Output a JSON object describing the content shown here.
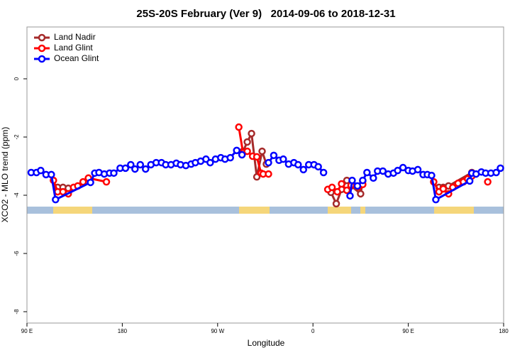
{
  "chart_data": {
    "type": "line",
    "title": "25S-20S February (Ver 9)   2014-09-06 to 2018-12-31",
    "x_label": "Longitude",
    "y_label": "XCO2 - MLO trend (ppm)",
    "xlim": [
      90,
      540
    ],
    "ylim": [
      -8.39,
      1.78
    ],
    "xticks": [
      {
        "value": 90,
        "label": "90 E"
      },
      180,
      {
        "value": 270,
        "label": "90 W"
      },
      {
        "value": 360,
        "label": "0"
      },
      {
        "value": 450,
        "label": "90 E"
      },
      {
        "value": 540,
        "label": "180"
      }
    ],
    "yticks": [
      -8,
      -6,
      -4,
      -2,
      0
    ],
    "legend": "top-left",
    "series": [
      {
        "name": "Land Nadir",
        "color": "#a52a2a",
        "x": [
          119,
          124,
          129,
          null,
          294,
          298,
          302,
          307,
          312,
          316,
          null,
          377,
          382,
          387,
          392,
          396,
          405,
          407,
          null,
          479,
          483,
          488,
          510
        ],
        "values": [
          -3.73,
          -3.73,
          -3.76,
          null,
          -2.49,
          -2.17,
          -1.88,
          -3.37,
          -2.49,
          -2.93,
          null,
          -3.9,
          -4.29,
          -3.8,
          -3.49,
          -3.68,
          -3.95,
          -3.51,
          null,
          -3.73,
          -3.73,
          -3.68,
          -3.22
        ]
      },
      {
        "name": "Land Glint",
        "color": "#ff0000",
        "x": [
          115,
          119,
          124,
          129,
          134,
          138,
          143,
          148,
          165,
          null,
          290,
          294,
          298,
          303,
          307,
          311,
          313,
          318,
          null,
          374,
          378,
          383,
          387,
          392,
          396,
          403,
          407,
          null,
          474,
          479,
          483,
          488,
          492,
          497,
          502,
          506,
          510,
          null,
          525
        ],
        "values": [
          -3.49,
          -3.88,
          -3.88,
          -3.95,
          -3.73,
          -3.68,
          -3.54,
          -3.41,
          -3.54,
          null,
          -1.66,
          -2.54,
          -2.49,
          -2.66,
          -2.68,
          -3.24,
          -3.27,
          -3.27,
          null,
          -3.8,
          -3.73,
          -3.88,
          -3.61,
          -3.83,
          -3.66,
          -3.71,
          -3.63,
          null,
          -3.54,
          -3.88,
          -3.78,
          -3.95,
          -3.73,
          -3.59,
          -3.54,
          -3.44,
          -3.34,
          null,
          -3.54
        ]
      },
      {
        "name": "Ocean Glint",
        "color": "#0000ff",
        "x": [
          94,
          99,
          103,
          108,
          113,
          117,
          150,
          154,
          158,
          163,
          168,
          172,
          178,
          183,
          188,
          192,
          197,
          202,
          207,
          212,
          217,
          221,
          226,
          231,
          235,
          240,
          245,
          249,
          254,
          259,
          263,
          268,
          273,
          277,
          282,
          288,
          293,
          null,
          318,
          323,
          328,
          332,
          337,
          342,
          346,
          351,
          356,
          361,
          365,
          370,
          null,
          395,
          397,
          402,
          407,
          411,
          417,
          421,
          426,
          431,
          436,
          440,
          445,
          450,
          454,
          459,
          464,
          468,
          472,
          476,
          508,
          510,
          514,
          519,
          523,
          528,
          533,
          537
        ],
        "values": [
          -3.22,
          -3.22,
          -3.15,
          -3.29,
          -3.29,
          -4.15,
          -3.56,
          -3.24,
          -3.22,
          -3.27,
          -3.24,
          -3.24,
          -3.07,
          -3.07,
          -2.95,
          -3.1,
          -2.95,
          -3.1,
          -2.95,
          -2.88,
          -2.88,
          -2.95,
          -2.95,
          -2.9,
          -2.95,
          -2.98,
          -2.93,
          -2.88,
          -2.83,
          -2.76,
          -2.88,
          -2.76,
          -2.71,
          -2.76,
          -2.71,
          -2.46,
          -2.61,
          null,
          -2.88,
          -2.63,
          -2.8,
          -2.76,
          -2.93,
          -2.88,
          -2.95,
          -3.12,
          -2.95,
          -2.95,
          -3.02,
          -3.22,
          null,
          -4.02,
          -3.49,
          -3.68,
          -3.49,
          -3.22,
          -3.41,
          -3.17,
          -3.17,
          -3.27,
          -3.24,
          -3.15,
          -3.05,
          -3.15,
          -3.17,
          -3.12,
          -3.29,
          -3.29,
          -3.32,
          -4.15,
          -3.51,
          -3.24,
          -3.27,
          -3.2,
          -3.24,
          -3.24,
          -3.22,
          -3.07
        ]
      }
    ]
  }
}
